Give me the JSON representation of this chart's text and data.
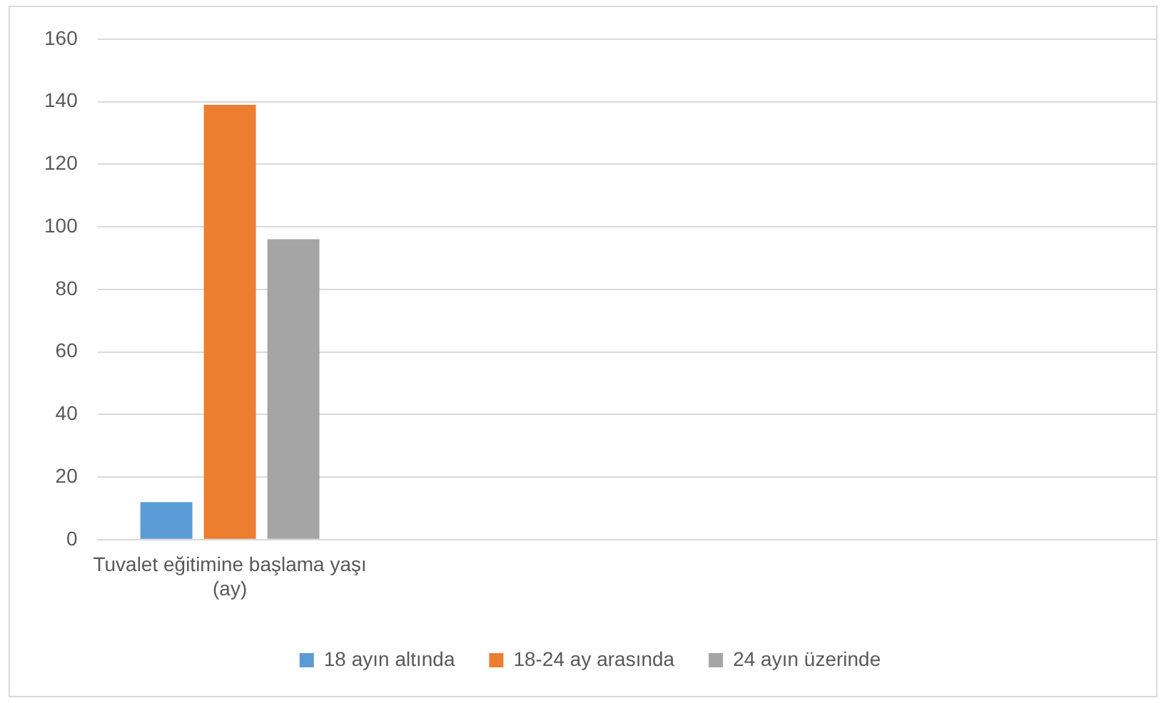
{
  "chart_data": {
    "type": "bar",
    "categories": [
      "Tuvalet eğitimine başlama yaşı (ay)",
      null,
      null,
      null
    ],
    "series": [
      {
        "name": "18 ayın altında",
        "color": "#5b9bd5",
        "values": [
          12,
          null,
          null,
          null
        ]
      },
      {
        "name": "18-24 ay arasında",
        "color": "#ed7d31",
        "values": [
          139,
          null,
          null,
          null
        ]
      },
      {
        "name": "24 ayın üzerinde",
        "color": "#a5a5a5",
        "values": [
          96,
          null,
          null,
          null
        ]
      }
    ],
    "ylim": [
      0,
      160
    ],
    "yticks": [
      0,
      20,
      40,
      60,
      80,
      100,
      120,
      140,
      160
    ],
    "grid": "y",
    "legend": "bottom"
  }
}
